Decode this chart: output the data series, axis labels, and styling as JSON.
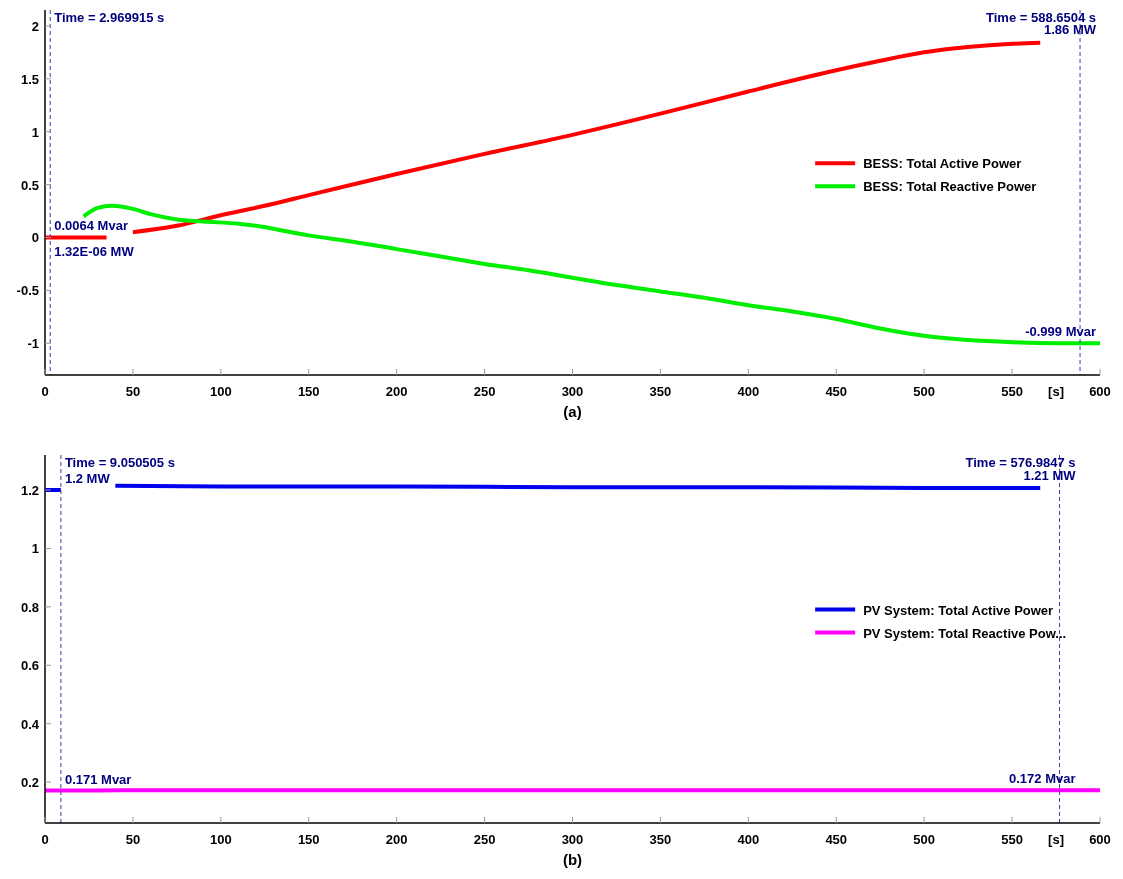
{
  "chart_data": [
    {
      "type": "line",
      "title": "(a)",
      "xlabel": "[s]",
      "xlim": [
        0,
        600
      ],
      "ylim": [
        -1.3,
        2.15
      ],
      "xticks": [
        0,
        50,
        100,
        150,
        200,
        250,
        300,
        350,
        400,
        450,
        500,
        550,
        600
      ],
      "yticks": [
        -1,
        -0.5,
        0,
        0.5,
        1,
        1.5,
        2
      ],
      "legend": "right",
      "line_style": "solid",
      "series": [
        {
          "name": "BESS: Total Active Power",
          "color": "#ff0000",
          "x": [
            0,
            10,
            20,
            35,
            42,
            50,
            75,
            100,
            125,
            150,
            175,
            200,
            250,
            300,
            350,
            400,
            450,
            475,
            500,
            525,
            550,
            566
          ],
          "values": [
            0,
            0,
            0,
            0,
            null,
            0.05,
            0.11,
            0.21,
            0.3,
            0.4,
            0.5,
            0.6,
            0.79,
            0.97,
            1.17,
            1.38,
            1.58,
            1.67,
            1.75,
            1.8,
            1.83,
            1.84
          ]
        },
        {
          "name": "BESS: Total Reactive Power",
          "color": "#00ee00",
          "x": [
            22,
            30,
            38,
            50,
            60,
            75,
            90,
            110,
            120,
            140,
            150,
            175,
            200,
            225,
            250,
            275,
            300,
            325,
            350,
            375,
            400,
            425,
            450,
            475,
            500,
            525,
            550,
            575,
            600
          ],
          "values": [
            0.2,
            0.28,
            0.3,
            0.27,
            0.22,
            0.17,
            0.15,
            0.13,
            0.11,
            0.05,
            0.02,
            -0.04,
            -0.11,
            -0.18,
            -0.25,
            -0.31,
            -0.38,
            -0.45,
            -0.51,
            -0.57,
            -0.64,
            -0.7,
            -0.77,
            -0.86,
            -0.93,
            -0.97,
            -0.99,
            -1.0,
            -1.0
          ]
        }
      ],
      "ref_lines": [
        {
          "axis": "x",
          "value": 2.969915,
          "label": "Time = 2.969915 s",
          "color": "#3a3aa8",
          "line_style": "dashed"
        },
        {
          "axis": "x",
          "value": 588.6504,
          "label": "Time = 588.6504 s",
          "color": "#3a3aa8",
          "line_style": "dashed"
        }
      ],
      "annotations": [
        {
          "text": "0.0064 Mvar",
          "x": 2.969915,
          "y": 0.0064
        },
        {
          "text": "1.32E-06 MW",
          "x": 2.969915,
          "y": 0
        },
        {
          "text": "1.86 MW",
          "x": 588.6504,
          "y": 1.86
        },
        {
          "text": "-0.999 Mvar",
          "x": 588.6504,
          "y": -0.999
        }
      ]
    },
    {
      "type": "line",
      "title": "(b)",
      "xlabel": "[s]",
      "xlim": [
        0,
        600
      ],
      "ylim": [
        0.06,
        1.32
      ],
      "xticks": [
        0,
        50,
        100,
        150,
        200,
        250,
        300,
        350,
        400,
        450,
        500,
        550,
        600
      ],
      "yticks": [
        0.2,
        0.4,
        0.6,
        0.8,
        1,
        1.2
      ],
      "legend": "right",
      "line_style": "solid",
      "series": [
        {
          "name": "PV System: Total Active Power",
          "color": "#0000ee",
          "x": [
            0,
            9,
            20,
            40,
            100,
            200,
            300,
            400,
            500,
            566
          ],
          "values": [
            1.2,
            1.2,
            null,
            1.215,
            1.212,
            1.212,
            1.21,
            1.21,
            1.207,
            1.207
          ]
        },
        {
          "name": "PV System: Total Reactive Pow...",
          "color": "#ff00ff",
          "x": [
            0,
            9,
            50,
            150,
            300,
            450,
            577,
            600
          ],
          "values": [
            0.171,
            0.171,
            0.172,
            0.172,
            0.172,
            0.172,
            0.172,
            0.172
          ]
        }
      ],
      "ref_lines": [
        {
          "axis": "x",
          "value": 9.050505,
          "label": "Time = 9.050505 s",
          "color": "#3a3aa8",
          "line_style": "dashed"
        },
        {
          "axis": "x",
          "value": 576.9847,
          "label": "Time = 576.9847 s",
          "color": "#3a3aa8",
          "line_style": "dashed"
        }
      ],
      "annotations": [
        {
          "text": "1.2 MW",
          "x": 9.050505,
          "y": 1.2
        },
        {
          "text": "0.171 Mvar",
          "x": 9.050505,
          "y": 0.171
        },
        {
          "text": "1.21 MW",
          "x": 576.9847,
          "y": 1.21
        },
        {
          "text": "0.172 Mvar",
          "x": 576.9847,
          "y": 0.172
        }
      ]
    }
  ]
}
